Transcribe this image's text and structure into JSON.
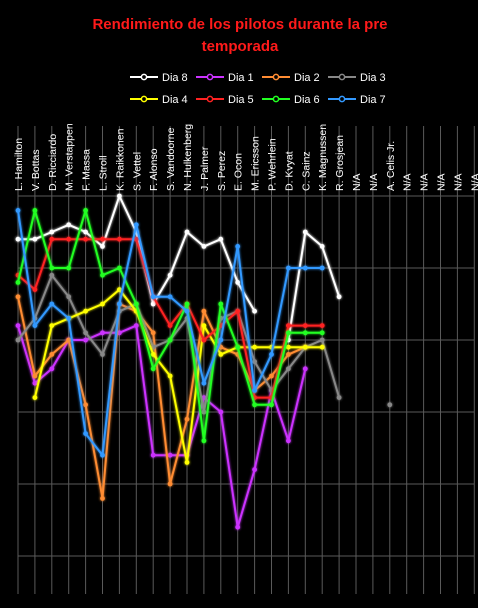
{
  "chart_data": {
    "type": "line",
    "title": "Rendimiento de los pilotos durante la pre temporada",
    "categories": [
      "L. Hamilton",
      "V. Bottas",
      "D. Ricciardo",
      "M. Verstappen",
      "F. Massa",
      "L. Stroll",
      "K. Raikkonen",
      "S. Vettel",
      "F. Alonso",
      "S. Vandoorne",
      "N. Hulkenberg",
      "J. Palmer",
      "S. Perez",
      "E. Ocon",
      "M. Ericsson",
      "P. Wehrlein",
      "D. Kvyat",
      "C. Sainz",
      "K. Magnussen",
      "R. Grosjean",
      "N/A",
      "N/A",
      "A. Celis Jr.",
      "N/A",
      "N/A",
      "N/A",
      "N/A",
      "N/A"
    ],
    "ylim": [
      0,
      5
    ],
    "grid": true,
    "legend_position": "top",
    "series": [
      {
        "name": "Dia 8",
        "color": "#ffffff",
        "values": [
          4.4,
          4.4,
          4.5,
          4.6,
          4.5,
          4.3,
          5.0,
          4.5,
          3.5,
          3.9,
          4.5,
          4.3,
          4.4,
          3.8,
          3.4,
          null,
          3.0,
          4.5,
          4.3,
          3.6,
          null,
          null,
          null,
          null,
          null,
          null,
          null,
          null
        ]
      },
      {
        "name": "Dia 1",
        "color": "#cc33ff",
        "values": [
          3.2,
          2.4,
          2.6,
          3.0,
          3.0,
          3.1,
          3.1,
          3.2,
          1.4,
          1.4,
          1.4,
          2.2,
          2.0,
          0.4,
          1.2,
          2.3,
          1.6,
          2.6,
          null,
          null,
          null,
          null,
          null,
          null,
          null,
          null,
          null,
          null
        ]
      },
      {
        "name": "Dia 2",
        "color": "#ff8c33",
        "values": [
          3.6,
          2.5,
          2.8,
          3.0,
          2.1,
          0.8,
          3.5,
          3.4,
          3.1,
          1.0,
          1.9,
          3.4,
          2.9,
          2.8,
          2.3,
          2.5,
          2.8,
          2.9,
          null,
          null,
          null,
          null,
          null,
          null,
          null,
          null,
          null,
          null
        ]
      },
      {
        "name": "Dia 3",
        "color": "#888888",
        "values": [
          3.0,
          3.3,
          3.9,
          3.6,
          3.1,
          2.8,
          3.4,
          3.5,
          2.9,
          3.0,
          3.3,
          2.0,
          3.3,
          3.4,
          2.7,
          2.3,
          2.6,
          2.9,
          3.0,
          2.2,
          null,
          null,
          2.1,
          null,
          null,
          null,
          null,
          null
        ]
      },
      {
        "name": "Dia 4",
        "color": "#ffff00",
        "values": [
          null,
          2.2,
          3.2,
          3.3,
          3.4,
          3.5,
          3.7,
          3.4,
          2.8,
          2.5,
          1.3,
          3.2,
          2.8,
          2.9,
          2.9,
          2.9,
          2.9,
          2.9,
          2.9,
          null,
          null,
          null,
          null,
          null,
          null,
          null,
          null,
          null
        ]
      },
      {
        "name": "Dia 5",
        "color": "#ff2222",
        "values": [
          3.9,
          3.7,
          4.4,
          4.4,
          4.4,
          4.4,
          4.4,
          4.4,
          3.6,
          3.2,
          3.5,
          3.0,
          3.2,
          3.4,
          2.2,
          2.2,
          3.2,
          3.2,
          3.2,
          null,
          null,
          null,
          null,
          null,
          null,
          null,
          null,
          null
        ]
      },
      {
        "name": "Dia 6",
        "color": "#22ff22",
        "values": [
          3.8,
          4.8,
          4.0,
          4.0,
          4.8,
          3.9,
          4.0,
          3.5,
          2.6,
          3.0,
          3.5,
          1.6,
          3.5,
          2.9,
          2.1,
          2.1,
          3.1,
          3.1,
          3.1,
          null,
          null,
          null,
          null,
          null,
          null,
          null,
          null,
          null
        ]
      },
      {
        "name": "Dia 7",
        "color": "#3399ff",
        "values": [
          4.8,
          3.2,
          3.5,
          3.3,
          1.7,
          1.4,
          3.5,
          4.6,
          3.6,
          3.6,
          3.4,
          2.4,
          3.0,
          4.3,
          2.3,
          2.8,
          4.0,
          4.0,
          4.0,
          null,
          null,
          null,
          null,
          null,
          null,
          null,
          null,
          null
        ]
      }
    ]
  }
}
